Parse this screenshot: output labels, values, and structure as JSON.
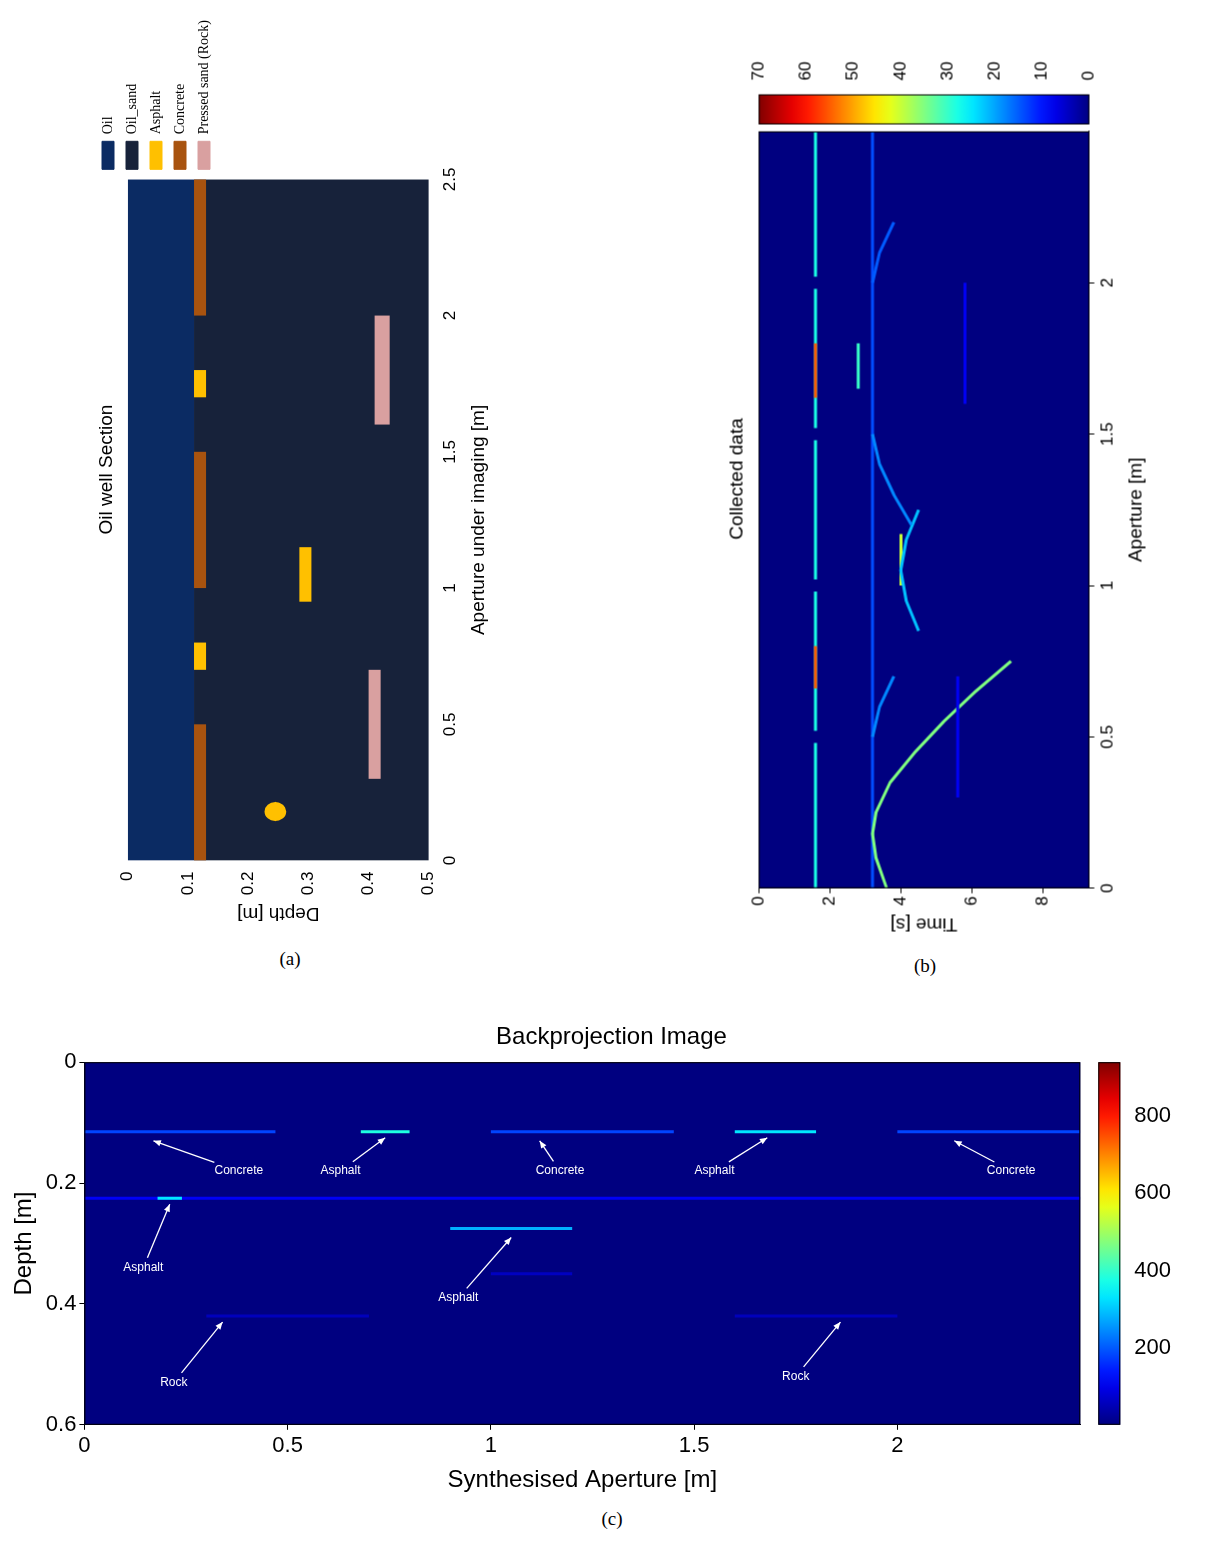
{
  "chart_data": [
    {
      "panel": "(a)",
      "type": "regions",
      "title": "Oil well Section",
      "x_label": "Aperture under imaging [m]",
      "y_label": "Depth [m]",
      "xlim": [
        0,
        2.5
      ],
      "xticks": [
        0,
        0.5,
        1,
        1.5,
        2,
        2.5
      ],
      "ylim": [
        0.5,
        0
      ],
      "yticks": [
        0,
        0.1,
        0.2,
        0.3,
        0.4,
        0.5
      ],
      "legend": "top",
      "series": [
        {
          "name": "Oil",
          "color": "#0b2b63",
          "regions": [
            {
              "x": [
                0,
                2.5
              ],
              "y": [
                0,
                0.11
              ]
            }
          ]
        },
        {
          "name": "Oil_sand",
          "color": "#17223a",
          "regions": [
            {
              "x": [
                0,
                2.5
              ],
              "y": [
                0.11,
                0.5
              ]
            }
          ]
        },
        {
          "name": "Asphalt",
          "color": "#ffc000",
          "regions": [
            {
              "x": [
                0.7,
                0.8
              ],
              "y": [
                0.11,
                0.13
              ]
            },
            {
              "x": [
                1.7,
                1.8
              ],
              "y": [
                0.11,
                0.13
              ]
            },
            {
              "x": [
                0.95,
                1.15
              ],
              "y": [
                0.285,
                0.305
              ]
            },
            {
              "x": [
                0.145,
                0.215
              ],
              "y": [
                0.227,
                0.263
              ],
              "marker": "circle"
            }
          ]
        },
        {
          "name": "Concrete",
          "color": "#a8530f",
          "regions": [
            {
              "x": [
                0,
                0.5
              ],
              "y": [
                0.11,
                0.13
              ]
            },
            {
              "x": [
                1,
                1.5
              ],
              "y": [
                0.11,
                0.13
              ]
            },
            {
              "x": [
                2,
                2.5
              ],
              "y": [
                0.11,
                0.13
              ]
            }
          ]
        },
        {
          "name": "Pressed sand (Rock)",
          "color": "#d9a0a0",
          "regions": [
            {
              "x": [
                0.3,
                0.7
              ],
              "y": [
                0.4,
                0.42
              ]
            },
            {
              "x": [
                1.6,
                2
              ],
              "y": [
                0.41,
                0.435
              ]
            }
          ]
        }
      ]
    },
    {
      "panel": "(b)",
      "type": "heatmap",
      "title": "Collected data",
      "x_label": "Aperture [m]",
      "y_label": "Time [s]",
      "xlim": [
        0,
        2.5
      ],
      "xticks": [
        0,
        0.5,
        1,
        1.5,
        2
      ],
      "ylim": [
        9.3,
        0
      ],
      "yticks": [
        0,
        2,
        4,
        6,
        8
      ],
      "colorbar": {
        "range": [
          0,
          70
        ],
        "ticks": [
          0,
          10,
          20,
          30,
          40,
          50,
          60,
          70
        ]
      },
      "reflections": [
        {
          "x": [
            0,
            0.48
          ],
          "y": [
            1.6,
            1.6
          ],
          "value": 28
        },
        {
          "x": [
            0.52,
            0.98
          ],
          "y": [
            1.6,
            1.6
          ],
          "value": 28
        },
        {
          "x": [
            1.02,
            1.48
          ],
          "y": [
            1.6,
            1.6
          ],
          "value": 28
        },
        {
          "x": [
            1.52,
            1.98
          ],
          "y": [
            1.6,
            1.6
          ],
          "value": 28
        },
        {
          "x": [
            2.02,
            2.5
          ],
          "y": [
            1.6,
            1.6
          ],
          "value": 28
        },
        {
          "x": [
            0.66,
            0.8
          ],
          "y": [
            1.6,
            1.6
          ],
          "value": 55
        },
        {
          "x": [
            1.62,
            1.8
          ],
          "y": [
            1.6,
            1.6
          ],
          "value": 55
        },
        {
          "x": [
            0,
            2.5
          ],
          "y": [
            3.2,
            3.2
          ],
          "value": 14
        },
        {
          "x": [
            1.65,
            1.8
          ],
          "y": [
            2.8,
            2.8
          ],
          "value": 30
        },
        {
          "x": [
            0,
            0.1,
            0.18,
            0.25,
            0.35,
            0.45,
            0.55,
            0.65,
            0.75
          ],
          "y": [
            3.6,
            3.3,
            3.2,
            3.3,
            3.7,
            4.4,
            5.2,
            6.1,
            7.1
          ],
          "value": 35
        },
        {
          "x": [
            1.0,
            1.17
          ],
          "y": [
            4.0,
            4.0
          ],
          "value": 40
        },
        {
          "x": [
            0.85,
            0.95,
            1.05,
            1.15,
            1.25
          ],
          "y": [
            4.5,
            4.15,
            4.0,
            4.15,
            4.5
          ],
          "value": 22
        },
        {
          "x": [
            1.5,
            1.4,
            1.3,
            1.2
          ],
          "y": [
            3.2,
            3.4,
            3.8,
            4.3
          ],
          "value": 18
        },
        {
          "x": [
            0.5,
            0.6,
            0.7
          ],
          "y": [
            3.2,
            3.4,
            3.8
          ],
          "value": 18
        },
        {
          "x": [
            2.0,
            2.1,
            2.2
          ],
          "y": [
            3.2,
            3.4,
            3.8
          ],
          "value": 15
        },
        {
          "x": [
            0.3,
            0.7
          ],
          "y": [
            5.6,
            5.6
          ],
          "value": 8
        },
        {
          "x": [
            1.6,
            2.0
          ],
          "y": [
            5.8,
            5.8
          ],
          "value": 8
        }
      ]
    },
    {
      "panel": "(c)",
      "type": "heatmap",
      "title": "Backprojection Image",
      "x_label": "Synthesised Aperture [m]",
      "y_label": "Depth [m]",
      "xlim": [
        0,
        2.45
      ],
      "xticks": [
        0,
        0.5,
        1,
        1.5,
        2
      ],
      "ylim": [
        0.6,
        0
      ],
      "yticks": [
        0,
        0.2,
        0.4,
        0.6
      ],
      "colorbar": {
        "range": [
          0,
          940
        ],
        "ticks": [
          200,
          400,
          600,
          800
        ]
      },
      "reflections": [
        {
          "x": [
            0,
            0.47
          ],
          "y": [
            0.115,
            0.115
          ],
          "value": 180
        },
        {
          "x": [
            1.0,
            1.45
          ],
          "y": [
            0.115,
            0.115
          ],
          "value": 180
        },
        {
          "x": [
            2.0,
            2.45
          ],
          "y": [
            0.115,
            0.115
          ],
          "value": 180
        },
        {
          "x": [
            0.68,
            0.8
          ],
          "y": [
            0.115,
            0.115
          ],
          "value": 380
        },
        {
          "x": [
            1.6,
            1.8
          ],
          "y": [
            0.115,
            0.115
          ],
          "value": 330
        },
        {
          "x": [
            0,
            2.45
          ],
          "y": [
            0.225,
            0.225
          ],
          "value": 110
        },
        {
          "x": [
            0.18,
            0.24
          ],
          "y": [
            0.225,
            0.225
          ],
          "value": 330
        },
        {
          "x": [
            0.9,
            1.2
          ],
          "y": [
            0.275,
            0.275
          ],
          "value": 280
        },
        {
          "x": [
            1.0,
            1.2
          ],
          "y": [
            0.35,
            0.35
          ],
          "value": 60
        },
        {
          "x": [
            0.3,
            0.7
          ],
          "y": [
            0.42,
            0.42
          ],
          "value": 55
        },
        {
          "x": [
            1.6,
            2.0
          ],
          "y": [
            0.42,
            0.42
          ],
          "value": 55
        }
      ],
      "annotations": [
        {
          "text": "Concrete",
          "x": 0.17,
          "y": 0.13,
          "text_x": 0.38,
          "text_y": 0.18
        },
        {
          "text": "Asphalt",
          "x": 0.74,
          "y": 0.125,
          "text_x": 0.63,
          "text_y": 0.18
        },
        {
          "text": "Concrete",
          "x": 1.12,
          "y": 0.13,
          "text_x": 1.17,
          "text_y": 0.18
        },
        {
          "text": "Asphalt",
          "x": 1.68,
          "y": 0.125,
          "text_x": 1.55,
          "text_y": 0.18
        },
        {
          "text": "Concrete",
          "x": 2.14,
          "y": 0.13,
          "text_x": 2.28,
          "text_y": 0.18
        },
        {
          "text": "Asphalt",
          "x": 0.21,
          "y": 0.235,
          "text_x": 0.145,
          "text_y": 0.34
        },
        {
          "text": "Asphalt",
          "x": 1.05,
          "y": 0.29,
          "text_x": 0.92,
          "text_y": 0.39
        },
        {
          "text": "Rock",
          "x": 0.34,
          "y": 0.43,
          "text_x": 0.22,
          "text_y": 0.53
        },
        {
          "text": "Rock",
          "x": 1.86,
          "y": 0.43,
          "text_x": 1.75,
          "text_y": 0.52
        }
      ]
    }
  ]
}
